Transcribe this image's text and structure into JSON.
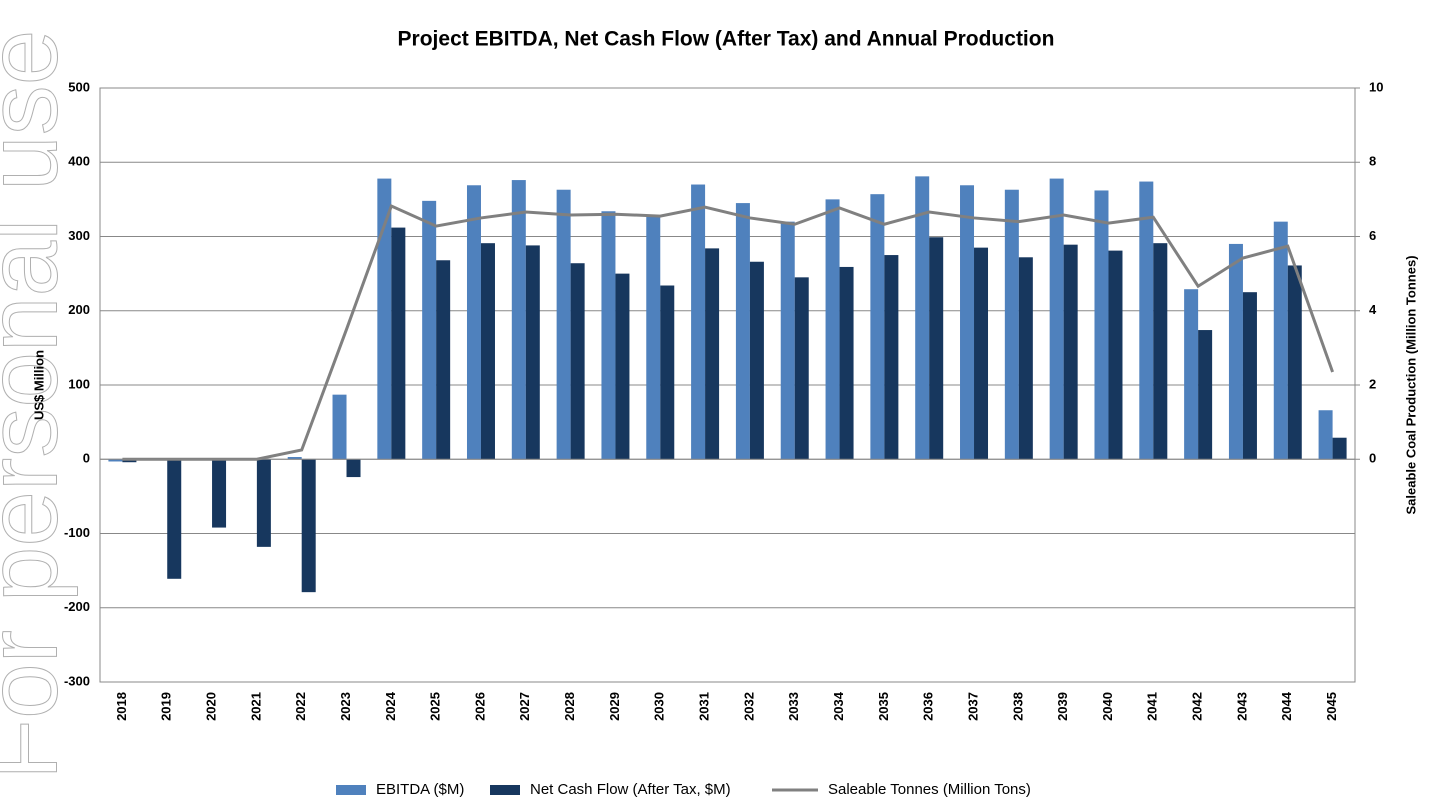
{
  "watermark": "For personal use only",
  "chart_data": {
    "type": "bar",
    "title": "Project EBITDA, Net Cash Flow (After Tax) and Annual Production",
    "ylabel": "US$ Million",
    "y2label": "Saleable Coal Production (Million Tonnes)",
    "categories": [
      "2018",
      "2019",
      "2020",
      "2021",
      "2022",
      "2023",
      "2024",
      "2025",
      "2026",
      "2027",
      "2028",
      "2029",
      "2030",
      "2031",
      "2032",
      "2033",
      "2034",
      "2035",
      "2036",
      "2037",
      "2038",
      "2039",
      "2040",
      "2041",
      "2042",
      "2043",
      "2044",
      "2045"
    ],
    "series": [
      {
        "name": "EBITDA ($M)",
        "color": "#4f81bd",
        "type": "bar",
        "values": [
          -3,
          0,
          0,
          0,
          3,
          87,
          378,
          348,
          369,
          376,
          363,
          334,
          327,
          370,
          345,
          320,
          350,
          357,
          381,
          369,
          363,
          378,
          362,
          374,
          229,
          290,
          320,
          66
        ]
      },
      {
        "name": "Net Cash Flow (After Tax, $M)",
        "color": "#17375e",
        "type": "bar",
        "values": [
          -4,
          -161,
          -92,
          -118,
          -179,
          -24,
          312,
          268,
          291,
          288,
          264,
          250,
          234,
          284,
          266,
          245,
          259,
          275,
          299,
          285,
          272,
          289,
          281,
          291,
          174,
          225,
          261,
          29
        ]
      },
      {
        "name": "Saleable Tonnes (Million Tons)",
        "color": "#808080",
        "type": "line",
        "axis": "y2",
        "values": [
          0,
          0,
          0,
          0,
          0.25,
          3.5,
          6.82,
          6.28,
          6.5,
          6.66,
          6.58,
          6.6,
          6.55,
          6.79,
          6.5,
          6.33,
          6.77,
          6.33,
          6.66,
          6.5,
          6.4,
          6.58,
          6.36,
          6.52,
          4.66,
          5.42,
          5.74,
          2.35
        ]
      }
    ],
    "ylim": [
      -300,
      500
    ],
    "yticks": [
      -300,
      -200,
      -100,
      0,
      100,
      200,
      300,
      400,
      500
    ],
    "y2lim": [
      -6,
      10
    ],
    "y2ticks": [
      0,
      2,
      4,
      6,
      8,
      10
    ],
    "grid": true,
    "legend": "bottom"
  }
}
